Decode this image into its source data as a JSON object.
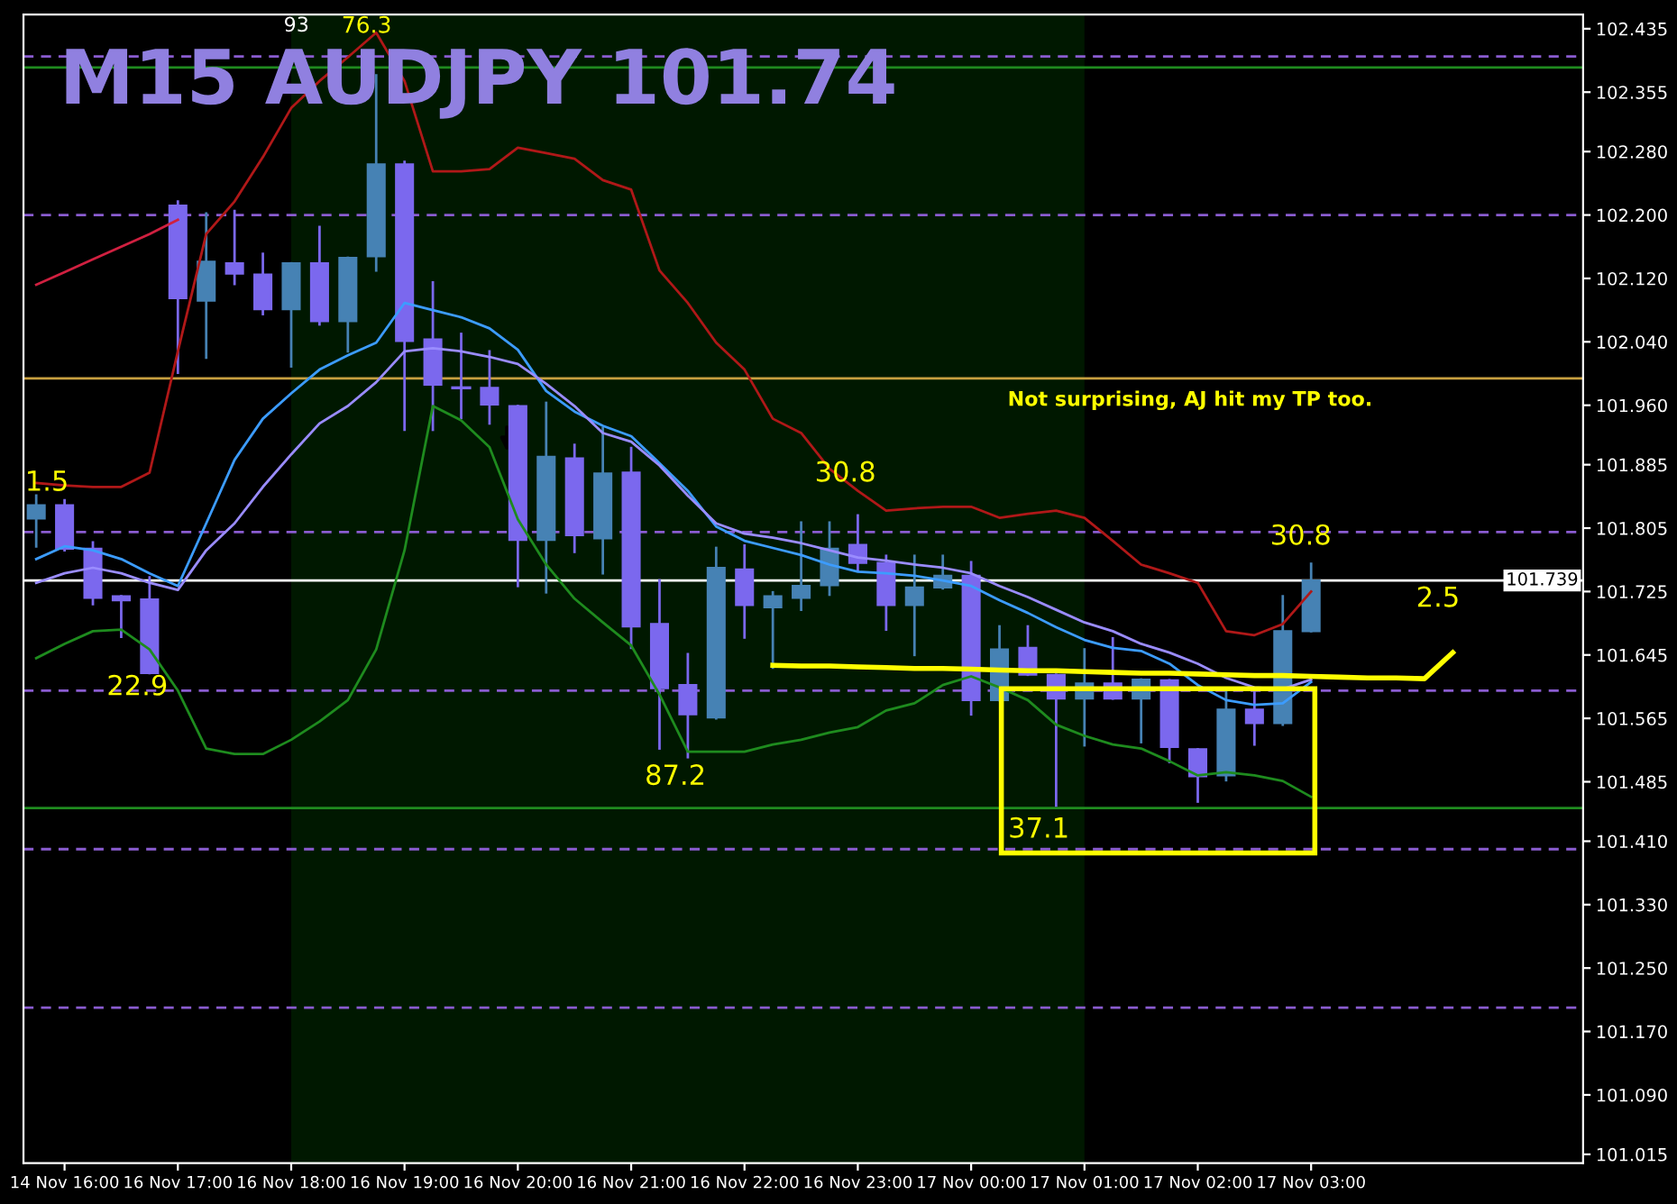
{
  "chart_data": {
    "type": "candlestick",
    "title": "M15 AUDJPY 101.74",
    "categories": [
      null,
      "14 Nov 16:00",
      null,
      null,
      null,
      "16 Nov 17:00",
      null,
      null,
      null,
      "16 Nov 18:00",
      null,
      null,
      null,
      "16 Nov 19:00",
      null,
      null,
      null,
      "16 Nov 20:00",
      null,
      null,
      null,
      "16 Nov 21:00",
      null,
      null,
      null,
      "16 Nov 22:00",
      null,
      null,
      null,
      "16 Nov 23:00",
      null,
      null,
      null,
      "17 Nov 00:00",
      null,
      null,
      null,
      "17 Nov 01:00",
      null,
      null,
      null,
      "17 Nov 02:00",
      null,
      null,
      null,
      "17 Nov 03:00",
      null,
      null,
      null,
      null,
      null
    ],
    "ohlc": [
      [
        101.817,
        101.846,
        101.782,
        101.834
      ],
      [
        101.834,
        101.84,
        101.777,
        101.779
      ],
      [
        101.779,
        101.787,
        101.709,
        101.717
      ],
      [
        101.719,
        101.719,
        101.668,
        101.714
      ],
      [
        101.715,
        101.743,
        101.622,
        101.622
      ],
      [
        102.212,
        102.217,
        102.001,
        102.095
      ],
      [
        102.092,
        102.202,
        102.02,
        102.141
      ],
      [
        102.139,
        102.205,
        102.113,
        102.126
      ],
      [
        102.125,
        102.151,
        102.075,
        102.081
      ],
      [
        102.081,
        102.139,
        102.009,
        102.139
      ],
      [
        102.139,
        102.185,
        102.062,
        102.066
      ],
      [
        102.066,
        102.146,
        102.028,
        102.146
      ],
      [
        102.148,
        102.376,
        102.13,
        102.264
      ],
      [
        102.264,
        102.267,
        101.929,
        102.041
      ],
      [
        102.043,
        102.115,
        101.929,
        101.986
      ],
      [
        101.982,
        102.05,
        101.944,
        101.982
      ],
      [
        101.982,
        102.028,
        101.937,
        101.961
      ],
      [
        101.959,
        101.959,
        101.732,
        101.79
      ],
      [
        101.79,
        101.963,
        101.724,
        101.895
      ],
      [
        101.893,
        101.91,
        101.775,
        101.796
      ],
      [
        101.792,
        101.931,
        101.748,
        101.874
      ],
      [
        101.875,
        101.906,
        101.654,
        101.681
      ],
      [
        101.684,
        101.739,
        101.527,
        101.603
      ],
      [
        101.607,
        101.646,
        101.516,
        101.57
      ],
      [
        101.566,
        101.78,
        101.565,
        101.755
      ],
      [
        101.753,
        101.783,
        101.667,
        101.708
      ],
      [
        101.705,
        101.724,
        101.629,
        101.719
      ],
      [
        101.717,
        101.812,
        101.702,
        101.732
      ],
      [
        101.733,
        101.812,
        101.721,
        101.779
      ],
      [
        101.784,
        101.821,
        101.751,
        101.761
      ],
      [
        101.761,
        101.77,
        101.677,
        101.708
      ],
      [
        101.708,
        101.77,
        101.645,
        101.73
      ],
      [
        101.73,
        101.77,
        101.729,
        101.745
      ],
      [
        101.745,
        101.762,
        101.57,
        101.588
      ],
      [
        101.588,
        101.681,
        101.588,
        101.652
      ],
      [
        101.654,
        101.681,
        101.62,
        101.62
      ],
      [
        101.62,
        101.62,
        101.455,
        101.59
      ],
      [
        101.59,
        101.652,
        101.531,
        101.609
      ],
      [
        101.609,
        101.666,
        101.59,
        101.59
      ],
      [
        101.59,
        101.614,
        101.535,
        101.614
      ],
      [
        101.613,
        101.613,
        101.51,
        101.529
      ],
      [
        101.526,
        101.526,
        101.46,
        101.492
      ],
      [
        101.493,
        101.601,
        101.487,
        101.576
      ],
      [
        101.576,
        101.598,
        101.532,
        101.559
      ],
      [
        101.559,
        101.719,
        101.557,
        101.675
      ],
      [
        101.675,
        101.76,
        101.675,
        101.739
      ],
      null,
      null,
      null,
      null,
      null
    ],
    "colors": [
      "#4682b4",
      "#7b68ee",
      "#7b68ee",
      "#7b68ee",
      "#7b68ee",
      "#7b68ee",
      "#4682b4",
      "#7b68ee",
      "#7b68ee",
      "#4682b4",
      "#7b68ee",
      "#4682b4",
      "#4682b4",
      "#7b68ee",
      "#7b68ee",
      "#7b68ee",
      "#7b68ee",
      "#7b68ee",
      "#4682b4",
      "#7b68ee",
      "#4682b4",
      "#7b68ee",
      "#7b68ee",
      "#7b68ee",
      "#4682b4",
      "#7b68ee",
      "#4682b4",
      "#4682b4",
      "#4682b4",
      "#7b68ee",
      "#7b68ee",
      "#4682b4",
      "#4682b4",
      "#7b68ee",
      "#4682b4",
      "#7b68ee",
      "#7b68ee",
      "#4682b4",
      "#7b68ee",
      "#4682b4",
      "#7b68ee",
      "#7b68ee",
      "#4682b4",
      "#7b68ee",
      "#4682b4",
      "#4682b4",
      null,
      null,
      null,
      null,
      null
    ],
    "series": [
      {
        "type": "line",
        "color": "#b01818",
        "values": [
          101.862,
          101.859,
          101.857,
          101.857,
          101.875,
          102.028,
          102.176,
          102.217,
          102.273,
          102.335,
          102.369,
          102.399,
          102.43,
          102.369,
          102.255,
          102.255,
          102.258,
          102.285,
          102.278,
          102.271,
          102.244,
          102.232,
          102.13,
          102.089,
          102.039,
          102.005,
          101.943,
          101.925,
          101.88,
          101.852,
          101.827,
          101.83,
          101.832,
          101.832,
          101.818,
          101.823,
          101.827,
          101.818,
          101.789,
          101.759,
          101.748,
          101.736,
          101.675,
          101.67,
          101.684,
          101.725,
          null,
          null,
          null,
          null,
          null
        ]
      },
      {
        "type": "line",
        "color": "#d02040",
        "values": [
          102.112,
          102.128,
          102.144,
          102.16,
          102.176,
          102.194,
          null,
          null,
          null,
          null,
          null,
          null,
          null,
          null,
          null,
          null,
          null,
          null,
          null,
          null,
          null,
          null,
          null,
          null,
          null,
          null,
          null,
          null,
          null,
          null,
          null,
          null,
          null,
          null,
          null,
          null,
          null,
          null,
          null,
          null,
          null,
          null,
          null,
          null,
          null,
          null,
          null,
          null,
          null,
          null,
          null
        ]
      },
      {
        "type": "line",
        "color": "#1e8b1e",
        "values": [
          101.641,
          101.659,
          101.675,
          101.677,
          101.652,
          101.6,
          101.527,
          101.52,
          101.52,
          101.538,
          101.561,
          101.588,
          101.652,
          101.777,
          101.959,
          101.941,
          101.907,
          101.816,
          101.759,
          101.716,
          101.686,
          101.657,
          101.595,
          101.523,
          101.523,
          101.523,
          101.532,
          101.538,
          101.547,
          101.554,
          101.575,
          101.584,
          101.607,
          101.618,
          101.604,
          101.588,
          101.557,
          101.543,
          101.532,
          101.527,
          101.511,
          101.493,
          101.497,
          101.493,
          101.486,
          101.466,
          null,
          null,
          null,
          null,
          null
        ]
      },
      {
        "type": "line",
        "color": "#3c9cff",
        "values": [
          101.766,
          101.782,
          101.777,
          101.766,
          101.748,
          101.732,
          101.811,
          101.891,
          101.943,
          101.975,
          102.005,
          102.023,
          102.039,
          102.089,
          102.08,
          102.071,
          102.057,
          102.03,
          101.978,
          101.952,
          101.934,
          101.921,
          101.887,
          101.852,
          101.807,
          101.789,
          101.78,
          101.771,
          101.759,
          101.75,
          101.748,
          101.745,
          101.739,
          101.732,
          101.714,
          101.698,
          101.68,
          101.664,
          101.654,
          101.65,
          101.634,
          101.607,
          101.588,
          101.582,
          101.584,
          101.611,
          null,
          null,
          null,
          null,
          null
        ]
      },
      {
        "type": "line",
        "color": "#9a8cff",
        "values": [
          101.736,
          101.748,
          101.755,
          101.748,
          101.736,
          101.727,
          101.777,
          101.811,
          101.857,
          101.898,
          101.937,
          101.959,
          101.989,
          102.028,
          102.032,
          102.028,
          102.021,
          102.012,
          101.987,
          101.959,
          101.925,
          101.914,
          101.884,
          101.846,
          101.811,
          101.798,
          101.793,
          101.786,
          101.777,
          101.768,
          101.764,
          101.759,
          101.755,
          101.748,
          101.732,
          101.718,
          101.702,
          101.686,
          101.675,
          101.659,
          101.648,
          101.634,
          101.616,
          101.604,
          101.602,
          101.614,
          null,
          null,
          null,
          null,
          null
        ]
      },
      {
        "type": "line",
        "color": "#ffff00",
        "values": [
          null,
          null,
          null,
          null,
          null,
          null,
          null,
          null,
          null,
          null,
          null,
          null,
          null,
          null,
          null,
          null,
          null,
          null,
          null,
          null,
          null,
          null,
          null,
          null,
          null,
          null,
          101.632,
          101.631,
          101.631,
          101.63,
          101.629,
          101.628,
          101.628,
          101.627,
          101.626,
          101.625,
          101.625,
          101.624,
          101.623,
          101.622,
          101.622,
          101.621,
          101.62,
          101.619,
          101.619,
          101.618,
          101.617,
          101.616,
          101.616,
          101.615,
          101.648
        ]
      }
    ],
    "ylim": [
      101.004,
      102.453
    ],
    "yticks": [
      {
        "value": 102.435,
        "label": "102.435"
      },
      {
        "value": 102.355,
        "label": "102.355"
      },
      {
        "value": 102.28,
        "label": "102.280"
      },
      {
        "value": 102.2,
        "label": "102.200"
      },
      {
        "value": 102.12,
        "label": "102.120"
      },
      {
        "value": 102.04,
        "label": "102.040"
      },
      {
        "value": 101.96,
        "label": "101.960"
      },
      {
        "value": 101.885,
        "label": "101.885"
      },
      {
        "value": 101.805,
        "label": "101.805"
      },
      {
        "value": 101.725,
        "label": "101.725"
      },
      {
        "value": 101.645,
        "label": "101.645"
      },
      {
        "value": 101.565,
        "label": "101.565"
      },
      {
        "value": 101.485,
        "label": "101.485"
      },
      {
        "value": 101.41,
        "label": "101.410"
      },
      {
        "value": 101.33,
        "label": "101.330"
      },
      {
        "value": 101.25,
        "label": "101.250"
      },
      {
        "value": 101.17,
        "label": "101.170"
      },
      {
        "value": 101.09,
        "label": "101.090"
      },
      {
        "value": 101.015,
        "label": "101.015"
      }
    ],
    "grid": false,
    "legend": false,
    "bands": [
      {
        "axis": "x",
        "from": "16 Nov 18:00",
        "to": "17 Nov 01:00",
        "color": "#001800"
      }
    ],
    "ref_lines": [
      {
        "axis": "y",
        "value": 102.4,
        "color": "#8a5cd0",
        "line_style": "dashed"
      },
      {
        "axis": "y",
        "value": 102.2,
        "color": "#8a5cd0",
        "line_style": "dashed"
      },
      {
        "axis": "y",
        "value": 101.8,
        "color": "#8a5cd0",
        "line_style": "dashed"
      },
      {
        "axis": "y",
        "value": 101.6,
        "color": "#8a5cd0",
        "line_style": "dashed"
      },
      {
        "axis": "y",
        "value": 101.4,
        "color": "#8a5cd0",
        "line_style": "dashed"
      },
      {
        "axis": "y",
        "value": 101.2,
        "color": "#8a5cd0",
        "line_style": "dashed"
      },
      {
        "axis": "y",
        "value": 102.386,
        "color": "#1f8b1f",
        "line_style": "solid"
      },
      {
        "axis": "y",
        "value": 101.452,
        "color": "#1f8b1f",
        "line_style": "solid"
      },
      {
        "axis": "y",
        "value": 101.994,
        "color": "#c8a040",
        "line_style": "solid"
      },
      {
        "axis": "y",
        "value": 101.739,
        "label": "101.739",
        "color": "#ffffff",
        "line_style": "solid"
      }
    ],
    "annotations": [
      "76.3",
      "93",
      "1.5",
      "22.9",
      "87.2",
      "30.8",
      "30.8",
      "2.5",
      "37.1",
      "Not surprising, AJ hit my TP too."
    ]
  }
}
